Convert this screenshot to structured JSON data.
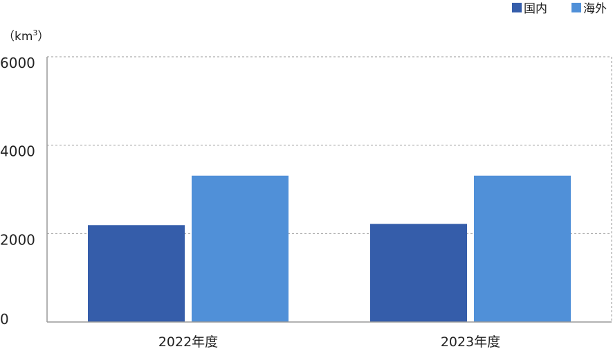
{
  "chart_data": {
    "type": "bar",
    "unit_prefix": "（km",
    "unit_sup": "3",
    "unit_suffix": "）",
    "categories": [
      "2022年度",
      "2023年度"
    ],
    "series": [
      {
        "name": "国内",
        "color": "#355DAA",
        "values": [
          2190,
          2220
        ]
      },
      {
        "name": "海外",
        "color": "#5090D8",
        "values": [
          3310,
          3310
        ]
      }
    ],
    "yticks": [
      "0",
      "2000",
      "4000",
      "6000"
    ],
    "ytick_values": [
      0,
      2000,
      4000,
      6000
    ],
    "ylim": [
      0,
      6000
    ],
    "grid": true,
    "legend_position": "top-right",
    "colors": {
      "grid": "#9a9a9a",
      "axis": "#999999",
      "text": "#222222"
    }
  }
}
